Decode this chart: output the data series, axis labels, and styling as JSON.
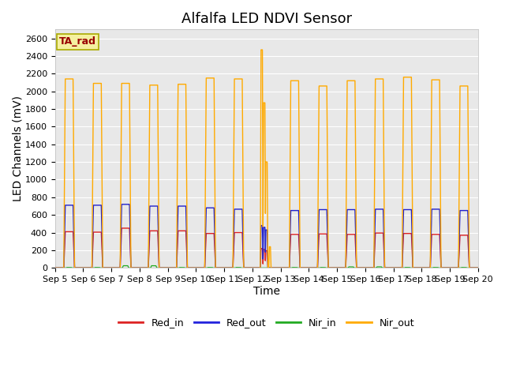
{
  "title": "Alfalfa LED NDVI Sensor",
  "ylabel": "LED Channels (mV)",
  "xlabel": "Time",
  "ylim": [
    0,
    2700
  ],
  "background_color": "#e8e8e8",
  "figure_bg": "#ffffff",
  "grid_color": "#ffffff",
  "ta_rad_label": "TA_rad",
  "ta_rad_bg": "#f5f0a0",
  "ta_rad_text_color": "#990000",
  "legend_entries": [
    "Red_in",
    "Red_out",
    "Nir_in",
    "Nir_out"
  ],
  "legend_colors": [
    "#dd2222",
    "#2222dd",
    "#22aa22",
    "#ffaa00"
  ],
  "series_colors": {
    "red_in": "#dd2222",
    "red_out": "#2222cc",
    "nir_in": "#22aa22",
    "nir_out": "#ffaa00"
  },
  "tick_labels": [
    "Sep 5",
    "Sep 6",
    "Sep 7",
    "Sep 8",
    "Sep 9",
    "Sep 10",
    "Sep 11",
    "Sep 12",
    "Sep 13",
    "Sep 14",
    "Sep 15",
    "Sep 16",
    "Sep 17",
    "Sep 18",
    "Sep 19",
    "Sep 20"
  ],
  "yticks": [
    0,
    200,
    400,
    600,
    800,
    1000,
    1200,
    1400,
    1600,
    1800,
    2000,
    2200,
    2400,
    2600
  ],
  "pulse_peaks_red_in": [
    410,
    405,
    450,
    420,
    420,
    390,
    400,
    220,
    380,
    385,
    380,
    395,
    390,
    380,
    370
  ],
  "pulse_peaks_red_out": [
    710,
    710,
    720,
    700,
    700,
    680,
    665,
    480,
    650,
    660,
    660,
    665,
    660,
    665,
    650
  ],
  "pulse_peaks_nir_in": [
    5,
    5,
    25,
    25,
    5,
    5,
    5,
    5,
    5,
    5,
    12,
    12,
    5,
    5,
    5
  ],
  "pulse_peaks_nir_out": [
    2140,
    2090,
    2090,
    2070,
    2080,
    2150,
    2140,
    2470,
    2120,
    2060,
    2120,
    2140,
    2160,
    2130,
    2060
  ],
  "title_fontsize": 13,
  "axis_label_fontsize": 10,
  "tick_fontsize": 8,
  "legend_fontsize": 9
}
